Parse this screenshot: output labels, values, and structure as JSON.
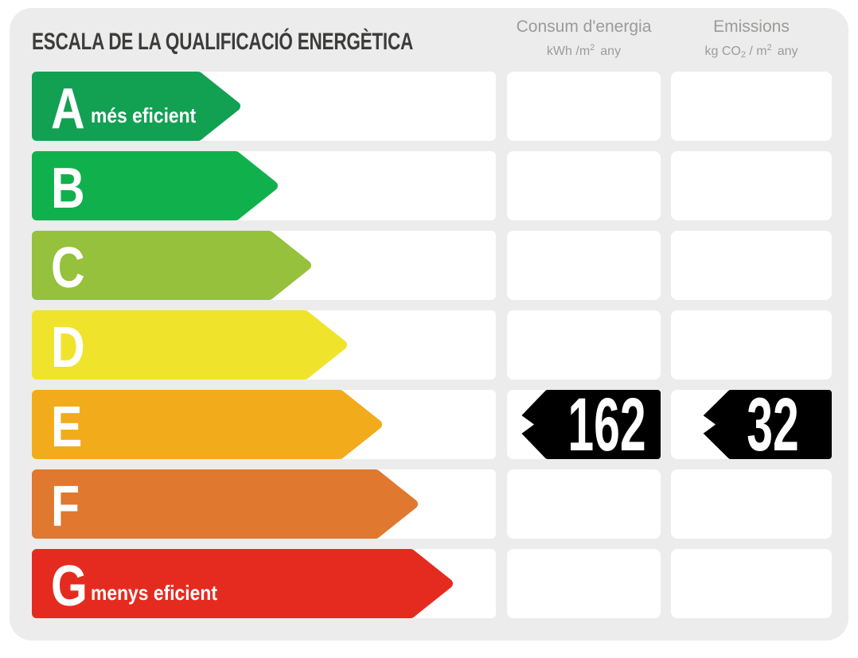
{
  "title": "ESCALA DE LA QUALIFICACIÓ ENERGÈTICA",
  "columns": {
    "consum": {
      "title": "Consum d'energia",
      "unit": {
        "p1": "kWh /m",
        "sup": "2",
        "p2": "any"
      }
    },
    "emissions": {
      "title": "Emissions",
      "unit": {
        "p1": "kg CO",
        "sub": "2",
        "p2": " / m",
        "sup": "2",
        "p3": "any"
      }
    }
  },
  "scale": {
    "rows": [
      {
        "letter": "A",
        "label": "més eficient",
        "color": "#12A053",
        "arrow_width": 263
      },
      {
        "letter": "B",
        "label": "",
        "color": "#10B14C",
        "arrow_width": 310
      },
      {
        "letter": "C",
        "label": "",
        "color": "#95C13D",
        "arrow_width": 352
      },
      {
        "letter": "D",
        "label": "",
        "color": "#EFE42B",
        "arrow_width": 397
      },
      {
        "letter": "E",
        "label": "",
        "color": "#F2AC1B",
        "arrow_width": 441
      },
      {
        "letter": "F",
        "label": "",
        "color": "#E0782F",
        "arrow_width": 486
      },
      {
        "letter": "G",
        "label": "menys eficient",
        "color": "#E52B20",
        "arrow_width": 530
      }
    ],
    "selected_letter": "E",
    "values": {
      "consum": "162",
      "emissions": "32"
    }
  },
  "colors": {
    "page_bg": "#FFFFFF",
    "panel_bg": "#ECECEC",
    "cell_bg": "#FFFFFF",
    "badge_bg": "#000000",
    "badge_text": "#FFFFFF",
    "title_text": "#3C3C3B",
    "header_text": "#9B9B9A"
  },
  "chart_data": {
    "type": "bar",
    "title": "ESCALA DE LA QUALIFICACIÓ ENERGÈTICA",
    "categories": [
      "A",
      "B",
      "C",
      "D",
      "E",
      "F",
      "G"
    ],
    "category_colors": [
      "#12A053",
      "#10B14C",
      "#95C13D",
      "#EFE42B",
      "#F2AC1B",
      "#E0782F",
      "#E52B20"
    ],
    "annotations": [
      "A = més eficient",
      "G = menys eficient"
    ],
    "rating": "E",
    "values": {
      "consum_energia": 162,
      "consum_energia_unit": "kWh/m2 any",
      "emissions": 32,
      "emissions_unit": "kg CO2/m2 any"
    },
    "legend_position": "none",
    "grid": false
  }
}
